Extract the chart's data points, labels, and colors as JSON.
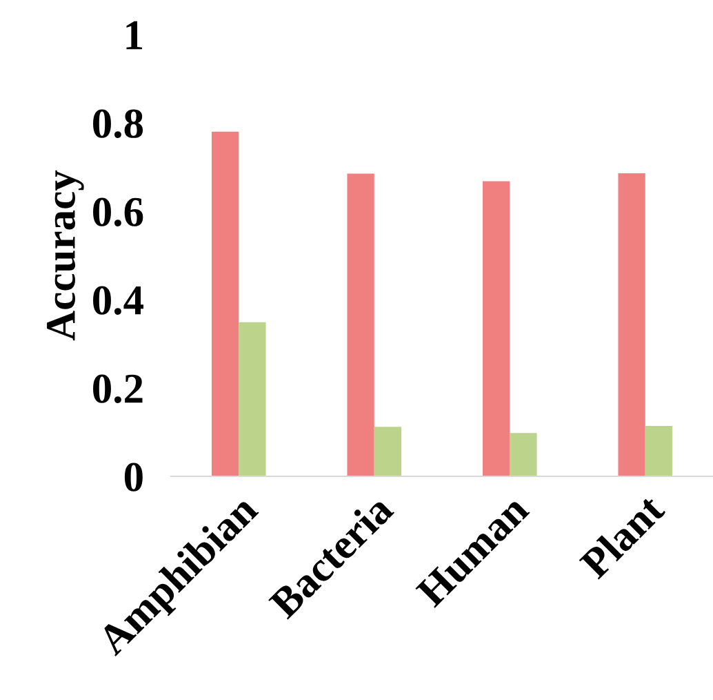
{
  "chart_data": {
    "type": "bar",
    "ylabel": "Accuracy",
    "categories": [
      "Amphibian",
      "Bacteria",
      "Human",
      "Plant"
    ],
    "series": [
      {
        "color": "#f08080",
        "values": [
          0.78,
          0.685,
          0.668,
          0.686
        ]
      },
      {
        "color": "#bcd38c",
        "values": [
          0.349,
          0.112,
          0.098,
          0.114
        ]
      }
    ],
    "ylim": [
      0,
      1
    ],
    "yticks": [
      0,
      0.2,
      0.4,
      0.6,
      0.8,
      1
    ],
    "grid": false,
    "legend": false
  }
}
